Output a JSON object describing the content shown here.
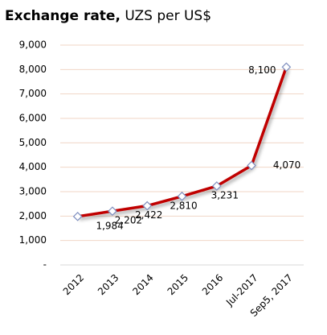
{
  "chart_data": {
    "type": "line",
    "title": "Exchange rate,",
    "subtitle": "UZS per US$",
    "categories": [
      "2012",
      "2013",
      "2014",
      "2015",
      "2016",
      "Jul-2017",
      "Sep5, 2017"
    ],
    "series": [
      {
        "name": "UZS per US$",
        "color": "#c00000",
        "values": [
          1984,
          2202,
          2422,
          2810,
          3231,
          4070,
          8100
        ],
        "value_labels": [
          "1,984",
          "2,202",
          "2,422",
          "2,810",
          "3,231",
          "4,070",
          "8,100"
        ]
      }
    ],
    "marker_stroke": "#7f8fbf",
    "ylim": [
      0,
      9000
    ],
    "yticks": [
      {
        "value": 0,
        "label": "-"
      },
      {
        "value": 1000,
        "label": "1,000"
      },
      {
        "value": 2000,
        "label": "2,000"
      },
      {
        "value": 3000,
        "label": "3,000"
      },
      {
        "value": 4000,
        "label": "4,000"
      },
      {
        "value": 5000,
        "label": "5,000"
      },
      {
        "value": 6000,
        "label": "6,000"
      },
      {
        "value": 7000,
        "label": "7,000"
      },
      {
        "value": 8000,
        "label": "8,000"
      },
      {
        "value": 9000,
        "label": "9,000"
      }
    ],
    "grid": true
  }
}
